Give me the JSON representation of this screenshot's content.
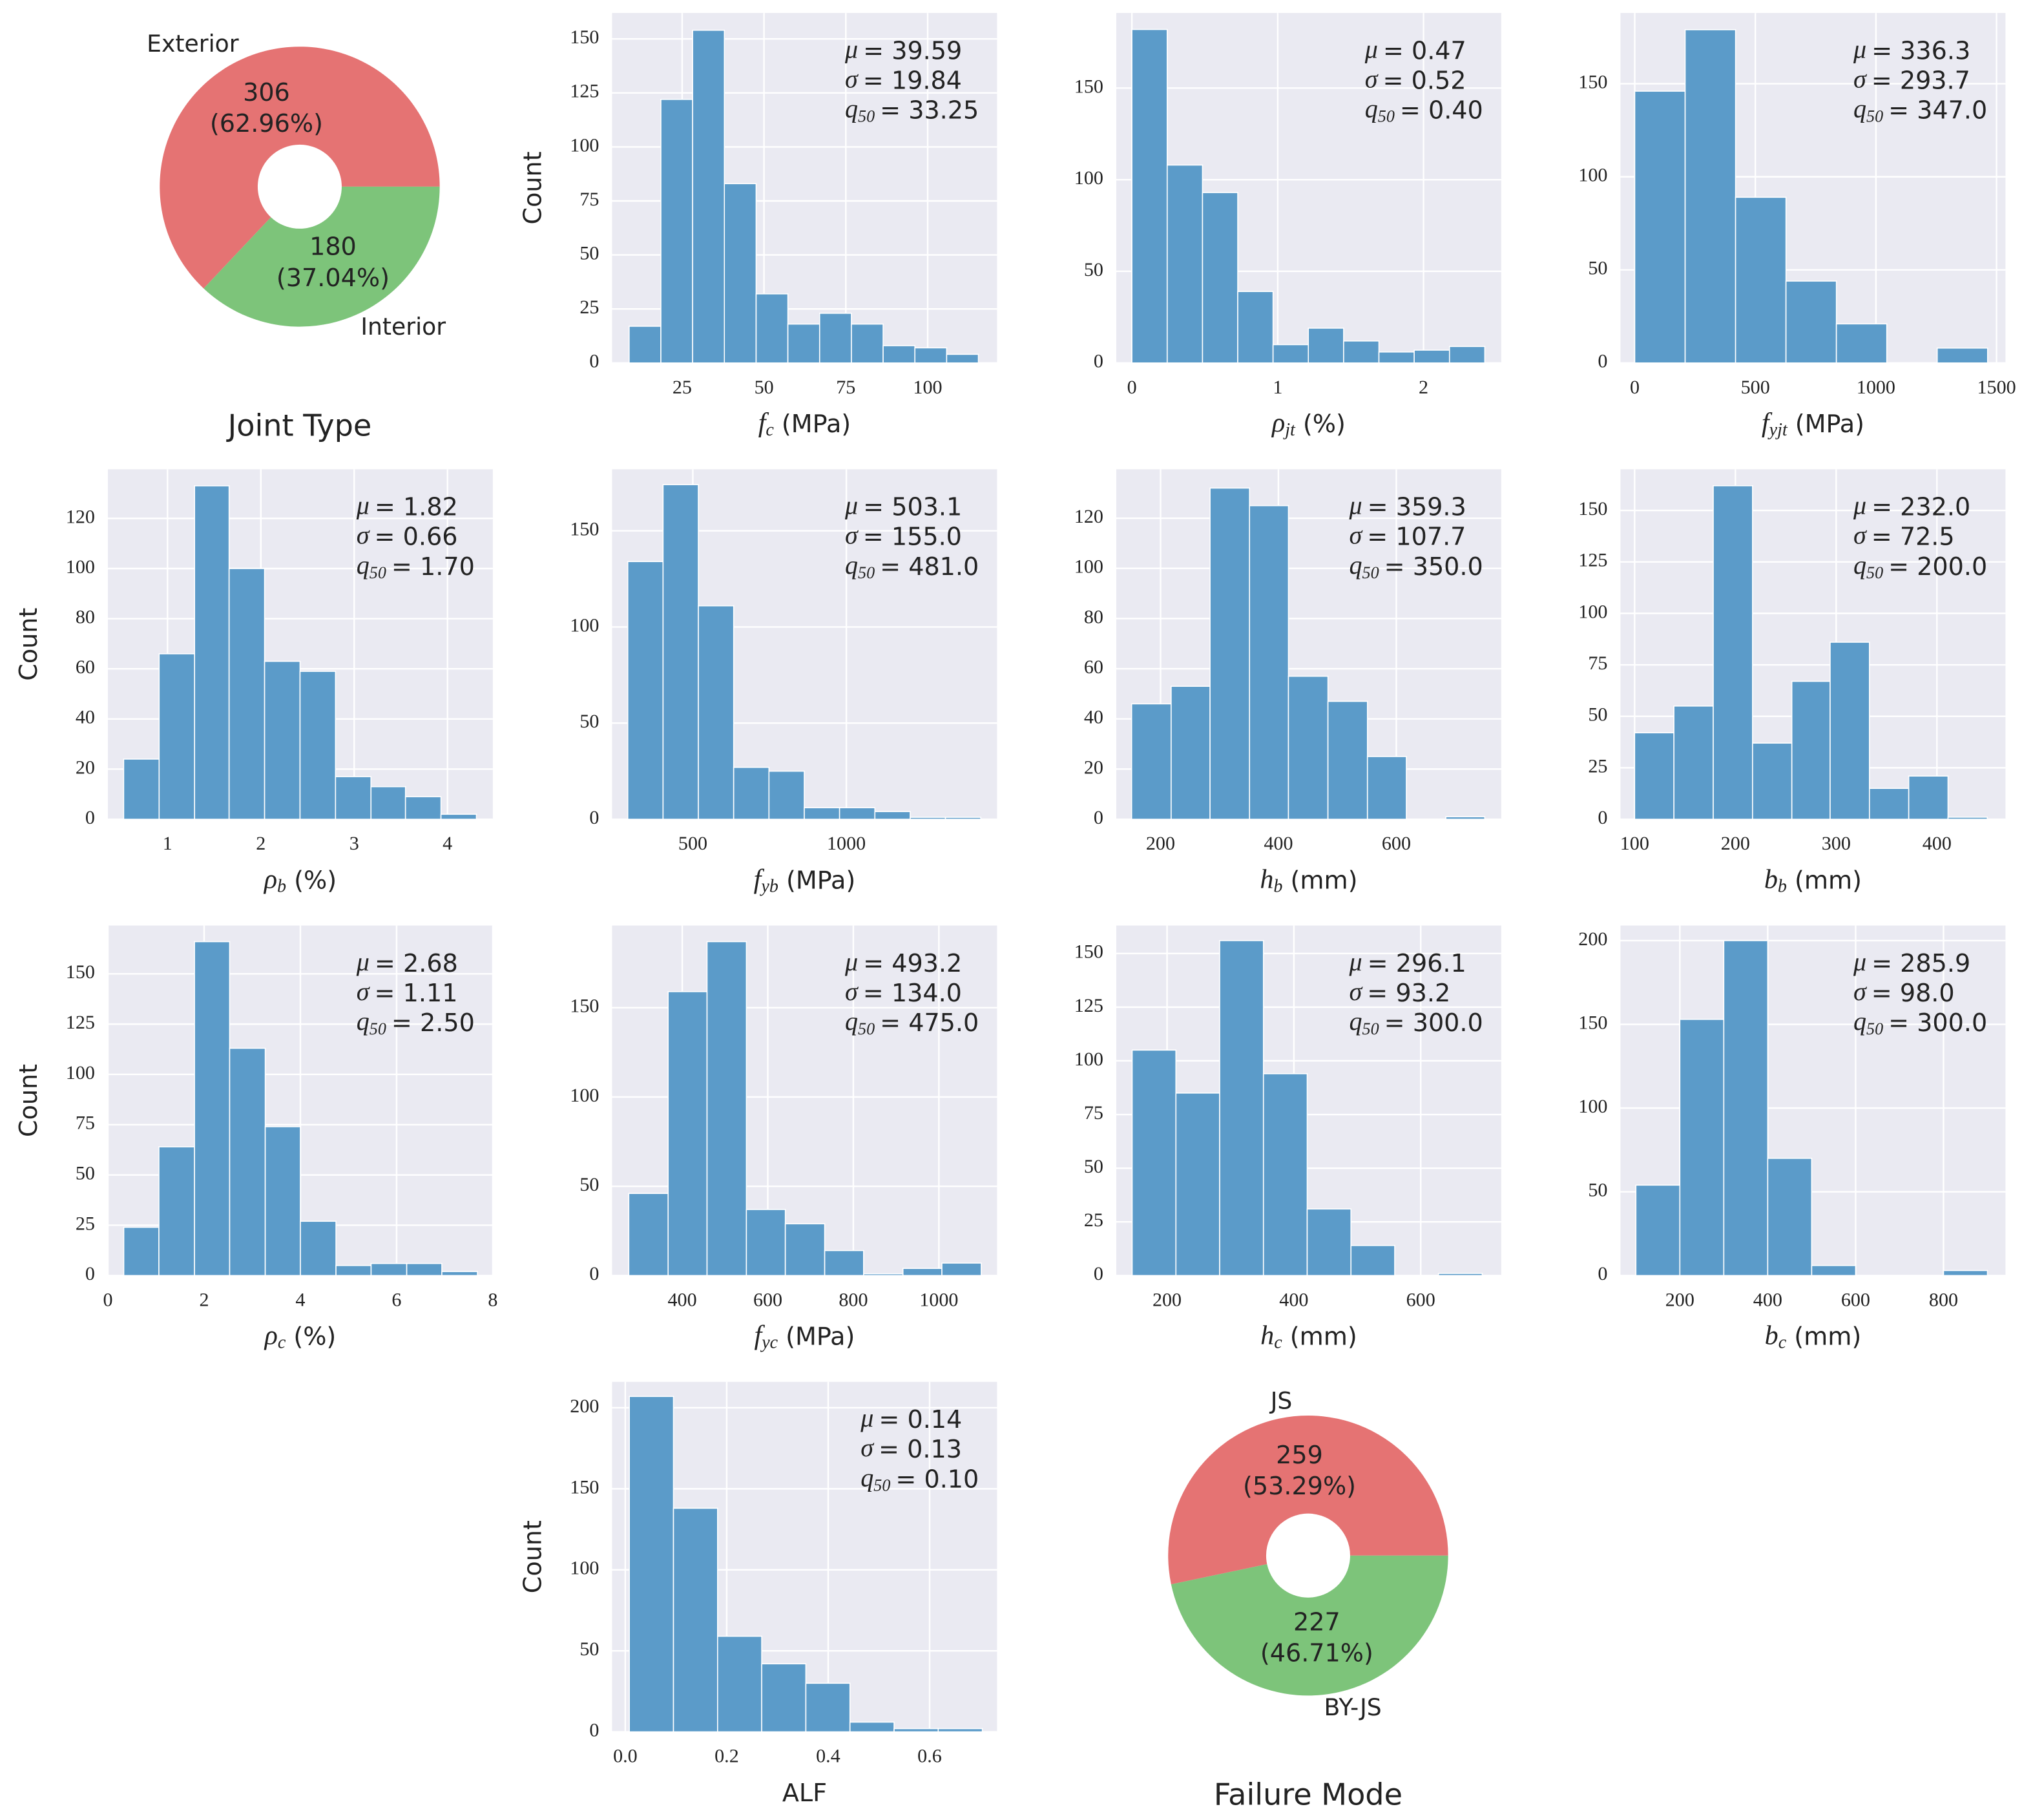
{
  "chart_data": [
    {
      "type": "pie",
      "title": "Joint Type",
      "labels": [
        "Exterior",
        "Interior"
      ],
      "values": [
        306,
        180
      ],
      "percent_labels": [
        "(62.96%)",
        "(37.04%)"
      ],
      "colors": [
        "#e57373",
        "#7dc47a"
      ],
      "hole": 0.3
    },
    {
      "type": "histogram",
      "bins": [
        8.8,
        18.5,
        28.2,
        37.9,
        47.6,
        57.3,
        67.0,
        76.7,
        86.4,
        96.1,
        105.8,
        115.5
      ],
      "counts": [
        17,
        122,
        154,
        83,
        32,
        18,
        23,
        18,
        8,
        7,
        4
      ],
      "color": "#5b9bc9",
      "grid": true,
      "xlim": [
        3.6,
        121.2
      ],
      "ylim": [
        0,
        162
      ],
      "xticks": [
        25,
        50,
        75,
        100
      ],
      "yticks": [
        0,
        25,
        50,
        75,
        100,
        125,
        150
      ],
      "xlabel": {
        "symbol": "f",
        "sub": "c",
        "unit": "(MPa)"
      },
      "ylabel": "Count",
      "stats": [
        {
          "symbol": "μ",
          "text": "= 39.59"
        },
        {
          "symbol": "σ",
          "text": "= 19.84"
        },
        {
          "symbol": "q",
          "sub": "50",
          "text": "= 33.25"
        }
      ]
    },
    {
      "type": "histogram",
      "bins": [
        0,
        0.242,
        0.484,
        0.726,
        0.968,
        1.21,
        1.452,
        1.694,
        1.936,
        2.178,
        2.42
      ],
      "counts": [
        182,
        108,
        93,
        39,
        10,
        19,
        12,
        6,
        7,
        9
      ],
      "color": "#5b9bc9",
      "grid": true,
      "xlim": [
        -0.107,
        2.533
      ],
      "ylim": [
        0,
        191
      ],
      "xticks": [
        0,
        1,
        2
      ],
      "yticks": [
        0,
        50,
        100,
        150
      ],
      "xlabel": {
        "symbol": "ρ",
        "sub": "jt",
        "unit": "(%)"
      },
      "stats": [
        {
          "symbol": "μ",
          "text": "= 0.47"
        },
        {
          "symbol": "σ",
          "text": "= 0.52"
        },
        {
          "symbol": "q",
          "sub": "50",
          "text": "= 0.40"
        }
      ]
    },
    {
      "type": "histogram",
      "bins": [
        0,
        209,
        418,
        627,
        836,
        1045,
        1254,
        1463
      ],
      "counts": [
        146,
        179,
        89,
        44,
        21,
        0,
        8
      ],
      "color": "#5b9bc9",
      "grid": true,
      "xlim": [
        -59,
        1537
      ],
      "ylim": [
        0,
        188
      ],
      "xticks": [
        0,
        500,
        1000,
        1500
      ],
      "yticks": [
        0,
        50,
        100,
        150
      ],
      "xlabel": {
        "symbol": "f",
        "sub": "yjt",
        "unit": "(MPa)"
      },
      "stats": [
        {
          "symbol": "μ",
          "text": "= 336.3"
        },
        {
          "symbol": "σ",
          "text": "= 293.7"
        },
        {
          "symbol": "q",
          "sub": "50",
          "text": "= 347.0"
        }
      ]
    },
    {
      "type": "histogram",
      "bins": [
        0.53,
        0.91,
        1.29,
        1.66,
        2.04,
        2.42,
        2.8,
        3.18,
        3.55,
        3.93,
        4.31
      ],
      "counts": [
        24,
        66,
        133,
        100,
        63,
        59,
        17,
        13,
        9,
        2
      ],
      "color": "#5b9bc9",
      "grid": true,
      "xlim": [
        0.361,
        4.486
      ],
      "ylim": [
        0,
        139.6
      ],
      "xticks": [
        1,
        2,
        3,
        4
      ],
      "yticks": [
        0,
        20,
        40,
        60,
        80,
        100,
        120
      ],
      "xlabel": {
        "symbol": "ρ",
        "sub": "b",
        "unit": "(%)"
      },
      "ylabel": "Count",
      "stats": [
        {
          "symbol": "μ",
          "text": "= 1.82"
        },
        {
          "symbol": "σ",
          "text": "= 0.66"
        },
        {
          "symbol": "q",
          "sub": "50",
          "text": "= 1.70"
        }
      ]
    },
    {
      "type": "histogram",
      "bins": [
        288,
        403,
        518,
        633,
        748,
        863,
        978,
        1093,
        1208,
        1323,
        1438
      ],
      "counts": [
        134,
        174,
        111,
        27,
        25,
        6,
        6,
        4,
        1,
        1
      ],
      "color": "#5b9bc9",
      "grid": true,
      "xlim": [
        237,
        1491
      ],
      "ylim": [
        0,
        182
      ],
      "xticks": [
        500,
        1000
      ],
      "yticks": [
        0,
        50,
        100,
        150
      ],
      "xlabel": {
        "symbol": "f",
        "sub": "yb",
        "unit": "(MPa)"
      },
      "stats": [
        {
          "symbol": "μ",
          "text": "= 503.1"
        },
        {
          "symbol": "σ",
          "text": "= 155.0"
        },
        {
          "symbol": "q",
          "sub": "50",
          "text": "= 481.0"
        }
      ]
    },
    {
      "type": "histogram",
      "bins": [
        151,
        218,
        284,
        351,
        417,
        484,
        551,
        617,
        684,
        750
      ],
      "counts": [
        46,
        53,
        132,
        125,
        57,
        47,
        25,
        0,
        1
      ],
      "color": "#5b9bc9",
      "grid": true,
      "xlim": [
        125,
        778
      ],
      "ylim": [
        0,
        139.5
      ],
      "xticks": [
        200,
        400,
        600
      ],
      "yticks": [
        0,
        20,
        40,
        60,
        80,
        100,
        120
      ],
      "xlabel": {
        "symbol": "h",
        "sub": "b",
        "unit": "(mm)"
      },
      "stats": [
        {
          "symbol": "μ",
          "text": "= 359.3"
        },
        {
          "symbol": "σ",
          "text": "= 107.7"
        },
        {
          "symbol": "q",
          "sub": "50",
          "text": "= 350.0"
        }
      ]
    },
    {
      "type": "histogram",
      "bins": [
        100,
        139,
        178,
        217,
        256,
        294,
        333,
        372,
        411,
        450
      ],
      "counts": [
        42,
        55,
        162,
        37,
        67,
        86,
        15,
        21,
        1
      ],
      "color": "#5b9bc9",
      "grid": true,
      "xlim": [
        86,
        468
      ],
      "ylim": [
        0,
        170
      ],
      "xticks": [
        100,
        200,
        300,
        400
      ],
      "yticks": [
        0,
        25,
        50,
        75,
        100,
        125,
        150
      ],
      "xlabel": {
        "symbol": "b",
        "sub": "b",
        "unit": "(mm)"
      },
      "stats": [
        {
          "symbol": "μ",
          "text": "= 232.0"
        },
        {
          "symbol": "σ",
          "text": "= 72.5"
        },
        {
          "symbol": "q",
          "sub": "50",
          "text": "= 200.0"
        }
      ]
    },
    {
      "type": "histogram",
      "bins": [
        0.33,
        1.06,
        1.8,
        2.53,
        3.27,
        4.0,
        4.74,
        5.47,
        6.21,
        6.94,
        7.68
      ],
      "counts": [
        24,
        64,
        166,
        113,
        74,
        27,
        5,
        6,
        6,
        2
      ],
      "color": "#5b9bc9",
      "grid": true,
      "xlim": [
        0,
        8
      ],
      "ylim": [
        0,
        174
      ],
      "xticks": [
        0,
        2,
        4,
        6,
        8
      ],
      "yticks": [
        0,
        25,
        50,
        75,
        100,
        125,
        150
      ],
      "xlabel": {
        "symbol": "ρ",
        "sub": "c",
        "unit": "(%)"
      },
      "ylabel": "Count",
      "stats": [
        {
          "symbol": "μ",
          "text": "= 2.68"
        },
        {
          "symbol": "σ",
          "text": "= 1.11"
        },
        {
          "symbol": "q",
          "sub": "50",
          "text": "= 2.50"
        }
      ]
    },
    {
      "type": "histogram",
      "bins": [
        275,
        367,
        458,
        550,
        641,
        733,
        824,
        916,
        1007,
        1099
      ],
      "counts": [
        46,
        159,
        187,
        37,
        29,
        14,
        1,
        4,
        7
      ],
      "color": "#5b9bc9",
      "grid": true,
      "xlim": [
        236,
        1136
      ],
      "ylim": [
        0,
        196
      ],
      "xticks": [
        400,
        600,
        800,
        1000
      ],
      "yticks": [
        0,
        50,
        100,
        150
      ],
      "xlabel": {
        "symbol": "f",
        "sub": "yc",
        "unit": "(MPa)"
      },
      "stats": [
        {
          "symbol": "μ",
          "text": "= 493.2"
        },
        {
          "symbol": "σ",
          "text": "= 134.0"
        },
        {
          "symbol": "q",
          "sub": "50",
          "text": "= 475.0"
        }
      ]
    },
    {
      "type": "histogram",
      "bins": [
        145,
        214,
        283,
        352,
        421,
        490,
        559,
        628,
        697
      ],
      "counts": [
        105,
        85,
        156,
        94,
        31,
        14,
        0,
        1
      ],
      "color": "#5b9bc9",
      "grid": true,
      "xlim": [
        120,
        727
      ],
      "ylim": [
        0,
        163
      ],
      "xticks": [
        200,
        400,
        600
      ],
      "yticks": [
        0,
        25,
        50,
        75,
        100,
        125,
        150
      ],
      "xlabel": {
        "symbol": "h",
        "sub": "c",
        "unit": "(mm)"
      },
      "stats": [
        {
          "symbol": "μ",
          "text": "= 296.1"
        },
        {
          "symbol": "σ",
          "text": "= 93.2"
        },
        {
          "symbol": "q",
          "sub": "50",
          "text": "= 300.0"
        }
      ]
    },
    {
      "type": "histogram",
      "bins": [
        100,
        200,
        300,
        400,
        500,
        600,
        700,
        800,
        900
      ],
      "counts": [
        54,
        153,
        200,
        70,
        6,
        0,
        0,
        3
      ],
      "color": "#5b9bc9",
      "grid": true,
      "xlim": [
        65,
        941
      ],
      "ylim": [
        0,
        209
      ],
      "xticks": [
        200,
        400,
        600,
        800
      ],
      "yticks": [
        0,
        50,
        100,
        150,
        200
      ],
      "xlabel": {
        "symbol": "b",
        "sub": "c",
        "unit": "(mm)"
      },
      "stats": [
        {
          "symbol": "μ",
          "text": "= 285.9"
        },
        {
          "symbol": "σ",
          "text": "= 98.0"
        },
        {
          "symbol": "q",
          "sub": "50",
          "text": "= 300.0"
        }
      ]
    },
    {
      "type": "histogram",
      "bins": [
        0.008,
        0.095,
        0.182,
        0.269,
        0.356,
        0.443,
        0.53,
        0.617,
        0.704
      ],
      "counts": [
        207,
        138,
        59,
        42,
        30,
        6,
        2,
        2
      ],
      "color": "#5b9bc9",
      "grid": true,
      "xlim": [
        -0.026,
        0.733
      ],
      "ylim": [
        0,
        216
      ],
      "xticks": [
        {
          "value": 0,
          "label": "0.0"
        },
        0.2,
        0.4,
        0.6
      ],
      "yticks": [
        0,
        50,
        100,
        150,
        200
      ],
      "xlabel": {
        "text": "ALF"
      },
      "ylabel": "Count",
      "stats": [
        {
          "symbol": "μ",
          "text": "= 0.14"
        },
        {
          "symbol": "σ",
          "text": "= 0.13"
        },
        {
          "symbol": "q",
          "sub": "50",
          "text": "= 0.10"
        }
      ]
    },
    {
      "type": "pie",
      "title": "Failure Mode",
      "labels": [
        "JS",
        "BY-JS"
      ],
      "values": [
        259,
        227
      ],
      "percent_labels": [
        "(53.29%)",
        "(46.71%)"
      ],
      "colors": [
        "#e57373",
        "#7dc47a"
      ],
      "hole": 0.3
    }
  ]
}
